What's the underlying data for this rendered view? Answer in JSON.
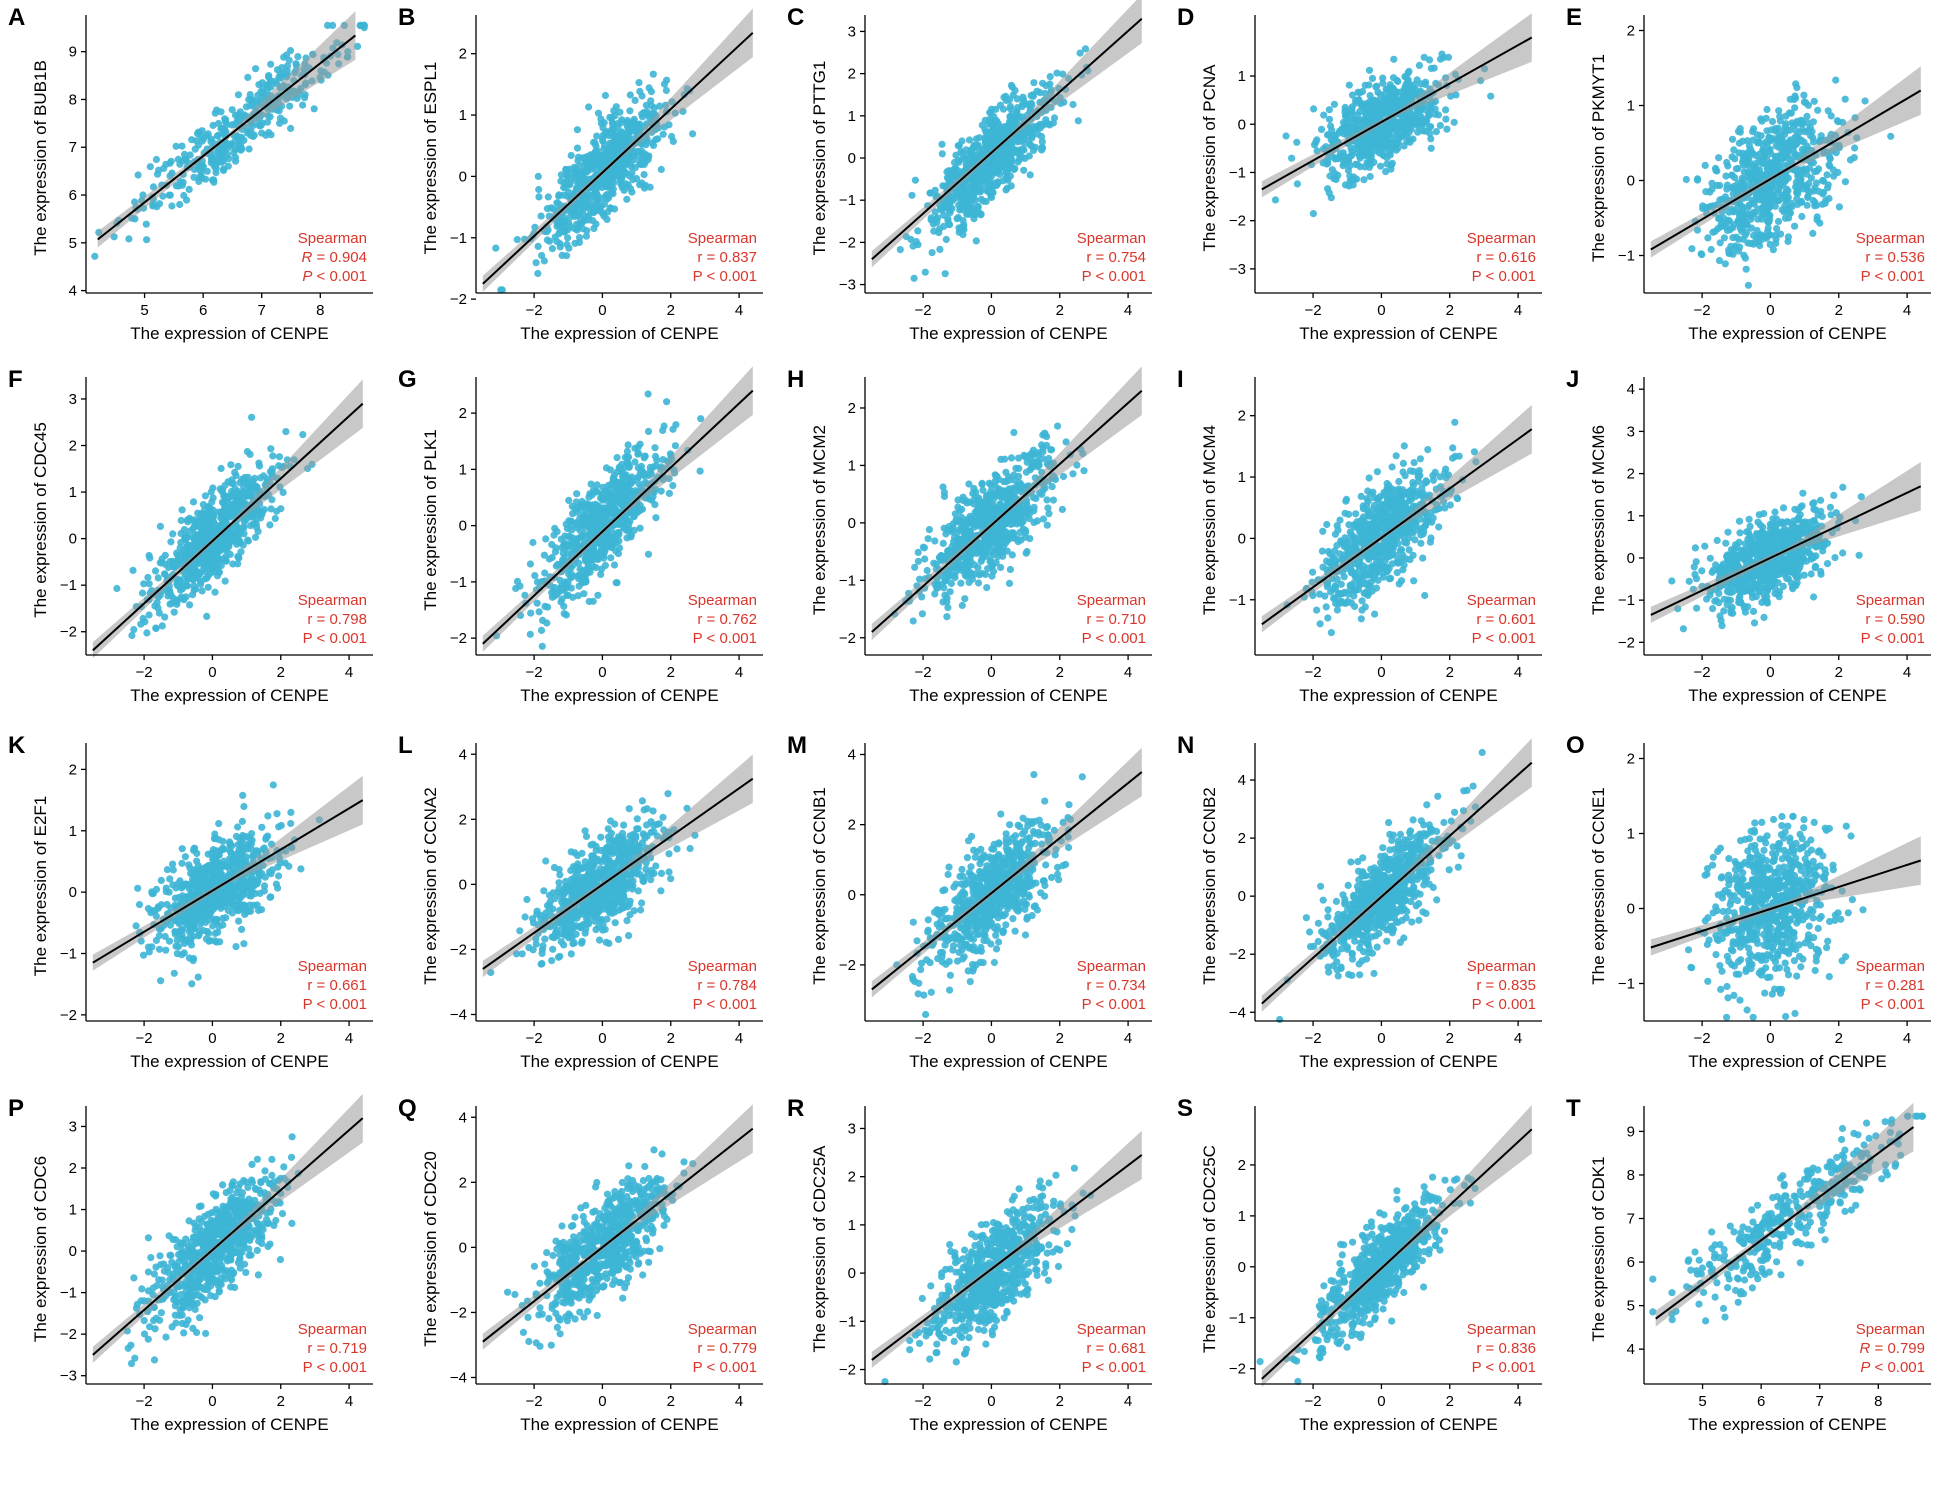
{
  "colors": {
    "points": "#3db5d5",
    "line": "#000000",
    "band": "#9a9a9a",
    "stat_text": "#d9362b"
  },
  "chart_data": [
    {
      "panel": "A",
      "type": "scatter",
      "title": "",
      "xlabel": "The expression of CENPE",
      "ylabel": "The expression of BUB1B",
      "xlim": [
        4.0,
        8.9
      ],
      "ylim": [
        3.95,
        9.6
      ],
      "xticks": [
        5,
        6,
        7,
        8
      ],
      "yticks": [
        4,
        5,
        6,
        7,
        8,
        9
      ],
      "x_center": 6.6,
      "x_sd": 0.9,
      "y_noise": 0.35,
      "slope": 0.97,
      "intercept": 1.0,
      "fit_line": [
        [
          4.2,
          5.07
        ],
        [
          8.6,
          9.34
        ]
      ],
      "method": "Spearman",
      "coef_symbol": "R",
      "coef_italic": true,
      "coef_value": "0.904",
      "p_value": "< 0.001",
      "n_points": 380
    },
    {
      "panel": "B",
      "type": "scatter",
      "title": "",
      "xlabel": "The expression of CENPE",
      "ylabel": "The expression of ESPL1",
      "xlim": [
        -3.7,
        4.7
      ],
      "ylim": [
        -1.9,
        2.5
      ],
      "xticks": [
        -2,
        0,
        2,
        4
      ],
      "yticks": [
        -2,
        -1,
        0,
        1,
        2
      ],
      "x_center": 0.0,
      "x_sd": 0.9,
      "y_noise": 0.35,
      "slope": 0.52,
      "intercept": 0.05,
      "fit_line": [
        [
          -3.5,
          -1.75
        ],
        [
          4.4,
          2.34
        ]
      ],
      "method": "Spearman",
      "coef_symbol": "r",
      "coef_italic": false,
      "coef_value": "0.837",
      "p_value": "< 0.001",
      "n_points": 700
    },
    {
      "panel": "C",
      "type": "scatter",
      "title": "",
      "xlabel": "The expression of CENPE",
      "ylabel": "The expression of PTTG1",
      "xlim": [
        -3.7,
        4.7
      ],
      "ylim": [
        -3.2,
        3.2
      ],
      "xticks": [
        -2,
        0,
        2,
        4
      ],
      "yticks": [
        -3,
        -2,
        -1,
        0,
        1,
        2,
        3
      ],
      "x_center": 0.0,
      "x_sd": 0.9,
      "y_noise": 0.5,
      "slope": 0.74,
      "intercept": 0.0,
      "fit_line": [
        [
          -3.5,
          -2.4
        ],
        [
          4.4,
          3.3
        ]
      ],
      "method": "Spearman",
      "coef_symbol": "r",
      "coef_italic": false,
      "coef_value": "0.754",
      "p_value": "< 0.001",
      "n_points": 700
    },
    {
      "panel": "D",
      "type": "scatter",
      "title": "",
      "xlabel": "The expression of CENPE",
      "ylabel": "The expression of PCNA",
      "xlim": [
        -3.7,
        4.7
      ],
      "ylim": [
        -3.5,
        2.1
      ],
      "xticks": [
        -2,
        0,
        2,
        4
      ],
      "yticks": [
        -3,
        -2,
        -1,
        0,
        1
      ],
      "x_center": 0.0,
      "x_sd": 0.9,
      "y_noise": 0.42,
      "slope": 0.33,
      "intercept": 0.0,
      "fit_line": [
        [
          -3.5,
          -1.35
        ],
        [
          4.4,
          1.8
        ]
      ],
      "method": "Spearman",
      "coef_symbol": "r",
      "coef_italic": false,
      "coef_value": "0.616",
      "p_value": "< 0.001",
      "n_points": 700
    },
    {
      "panel": "E",
      "type": "scatter",
      "title": "",
      "xlabel": "The expression of CENPE",
      "ylabel": "The expression of PKMYT1",
      "xlim": [
        -3.7,
        4.7
      ],
      "ylim": [
        -1.5,
        2.1
      ],
      "xticks": [
        -2,
        0,
        2,
        4
      ],
      "yticks": [
        -1,
        0,
        1,
        2
      ],
      "x_center": 0.0,
      "x_sd": 0.9,
      "y_noise": 0.42,
      "slope": 0.23,
      "intercept": 0.0,
      "fit_line": [
        [
          -3.5,
          -0.92
        ],
        [
          4.4,
          1.2
        ]
      ],
      "method": "Spearman",
      "coef_symbol": "r",
      "coef_italic": false,
      "coef_value": "0.536",
      "p_value": "< 0.001",
      "n_points": 700
    },
    {
      "panel": "F",
      "type": "scatter",
      "title": "",
      "xlabel": "The expression of CENPE",
      "ylabel": "The expression of CDC45",
      "xlim": [
        -3.7,
        4.7
      ],
      "ylim": [
        -2.5,
        3.3
      ],
      "xticks": [
        -2,
        0,
        2,
        4
      ],
      "yticks": [
        -2,
        -1,
        0,
        1,
        2,
        3
      ],
      "x_center": 0.0,
      "x_sd": 0.9,
      "y_noise": 0.45,
      "slope": 0.68,
      "intercept": 0.02,
      "fit_line": [
        [
          -3.5,
          -2.4
        ],
        [
          4.4,
          2.9
        ]
      ],
      "method": "Spearman",
      "coef_symbol": "r",
      "coef_italic": false,
      "coef_value": "0.798",
      "p_value": "< 0.001",
      "n_points": 700
    },
    {
      "panel": "G",
      "type": "scatter",
      "title": "",
      "xlabel": "The expression of CENPE",
      "ylabel": "The expression of PLK1",
      "xlim": [
        -3.7,
        4.7
      ],
      "ylim": [
        -2.3,
        2.5
      ],
      "xticks": [
        -2,
        0,
        2,
        4
      ],
      "yticks": [
        -2,
        -1,
        0,
        1,
        2
      ],
      "x_center": 0.0,
      "x_sd": 0.9,
      "y_noise": 0.42,
      "slope": 0.58,
      "intercept": 0.0,
      "fit_line": [
        [
          -3.5,
          -2.1
        ],
        [
          4.4,
          2.4
        ]
      ],
      "method": "Spearman",
      "coef_symbol": "r",
      "coef_italic": false,
      "coef_value": "0.762",
      "p_value": "< 0.001",
      "n_points": 700
    },
    {
      "panel": "H",
      "type": "scatter",
      "title": "",
      "xlabel": "The expression of CENPE",
      "ylabel": "The expression of MCM2",
      "xlim": [
        -3.7,
        4.7
      ],
      "ylim": [
        -2.3,
        2.4
      ],
      "xticks": [
        -2,
        0,
        2,
        4
      ],
      "yticks": [
        -2,
        -1,
        0,
        1,
        2
      ],
      "x_center": 0.0,
      "x_sd": 0.9,
      "y_noise": 0.42,
      "slope": 0.5,
      "intercept": 0.0,
      "fit_line": [
        [
          -3.5,
          -1.9
        ],
        [
          4.4,
          2.3
        ]
      ],
      "method": "Spearman",
      "coef_symbol": "r",
      "coef_italic": false,
      "coef_value": "0.710",
      "p_value": "< 0.001",
      "n_points": 700
    },
    {
      "panel": "I",
      "type": "scatter",
      "title": "",
      "xlabel": "The expression of CENPE",
      "ylabel": "The expression of MCM4",
      "xlim": [
        -3.7,
        4.7
      ],
      "ylim": [
        -1.9,
        2.5
      ],
      "xticks": [
        -2,
        0,
        2,
        4
      ],
      "yticks": [
        -1,
        0,
        1,
        2
      ],
      "x_center": 0.0,
      "x_sd": 0.9,
      "y_noise": 0.42,
      "slope": 0.41,
      "intercept": 0.0,
      "fit_line": [
        [
          -3.5,
          -1.4
        ],
        [
          4.4,
          1.78
        ]
      ],
      "method": "Spearman",
      "coef_symbol": "r",
      "coef_italic": false,
      "coef_value": "0.601",
      "p_value": "< 0.001",
      "n_points": 700
    },
    {
      "panel": "J",
      "type": "scatter",
      "title": "",
      "xlabel": "The expression of CENPE",
      "ylabel": "The expression of MCM6",
      "xlim": [
        -3.7,
        4.7
      ],
      "ylim": [
        -2.3,
        4.1
      ],
      "xticks": [
        -2,
        0,
        2,
        4
      ],
      "yticks": [
        -2,
        -1,
        0,
        1,
        2,
        3,
        4
      ],
      "x_center": 0.0,
      "x_sd": 0.9,
      "y_noise": 0.45,
      "slope": 0.39,
      "intercept": 0.0,
      "fit_line": [
        [
          -3.5,
          -1.35
        ],
        [
          4.4,
          1.7
        ]
      ],
      "method": "Spearman",
      "coef_symbol": "r",
      "coef_italic": false,
      "coef_value": "0.590",
      "p_value": "< 0.001",
      "n_points": 700
    },
    {
      "panel": "K",
      "type": "scatter",
      "title": "",
      "xlabel": "The expression of CENPE",
      "ylabel": "The expression of E2F1",
      "xlim": [
        -3.7,
        4.7
      ],
      "ylim": [
        -2.1,
        2.3
      ],
      "xticks": [
        -2,
        0,
        2,
        4
      ],
      "yticks": [
        -2,
        -1,
        0,
        1,
        2
      ],
      "x_center": 0.0,
      "x_sd": 0.9,
      "y_noise": 0.38,
      "slope": 0.33,
      "intercept": 0.0,
      "fit_line": [
        [
          -3.5,
          -1.15
        ],
        [
          4.4,
          1.5
        ]
      ],
      "method": "Spearman",
      "coef_symbol": "r",
      "coef_italic": false,
      "coef_value": "0.661",
      "p_value": "< 0.001",
      "n_points": 700
    },
    {
      "panel": "L",
      "type": "scatter",
      "title": "",
      "xlabel": "The expression of CENPE",
      "ylabel": "The expression of CCNA2",
      "xlim": [
        -3.7,
        4.7
      ],
      "ylim": [
        -4.2,
        4.1
      ],
      "xticks": [
        -2,
        0,
        2,
        4
      ],
      "yticks": [
        -4,
        -2,
        0,
        2,
        4
      ],
      "x_center": 0.0,
      "x_sd": 0.9,
      "y_noise": 0.7,
      "slope": 0.74,
      "intercept": 0.0,
      "fit_line": [
        [
          -3.5,
          -2.6
        ],
        [
          4.4,
          3.25
        ]
      ],
      "method": "Spearman",
      "coef_symbol": "r",
      "coef_italic": false,
      "coef_value": "0.784",
      "p_value": "< 0.001",
      "n_points": 700
    },
    {
      "panel": "M",
      "type": "scatter",
      "title": "",
      "xlabel": "The expression of CENPE",
      "ylabel": "The expression of CCNB1",
      "xlim": [
        -3.7,
        4.7
      ],
      "ylim": [
        -3.6,
        4.1
      ],
      "xticks": [
        -2,
        0,
        2,
        4
      ],
      "yticks": [
        -2,
        0,
        2,
        4
      ],
      "x_center": 0.0,
      "x_sd": 0.9,
      "y_noise": 0.7,
      "slope": 0.82,
      "intercept": 0.0,
      "fit_line": [
        [
          -3.5,
          -2.7
        ],
        [
          4.4,
          3.5
        ]
      ],
      "method": "Spearman",
      "coef_symbol": "r",
      "coef_italic": false,
      "coef_value": "0.734",
      "p_value": "< 0.001",
      "n_points": 700
    },
    {
      "panel": "N",
      "type": "scatter",
      "title": "",
      "xlabel": "The expression of CENPE",
      "ylabel": "The expression of CCNB2",
      "xlim": [
        -3.7,
        4.7
      ],
      "ylim": [
        -4.3,
        5.0
      ],
      "xticks": [
        -2,
        0,
        2,
        4
      ],
      "yticks": [
        -4,
        -2,
        0,
        2,
        4
      ],
      "x_center": 0.0,
      "x_sd": 0.9,
      "y_noise": 0.75,
      "slope": 1.05,
      "intercept": 0.0,
      "fit_line": [
        [
          -3.5,
          -3.7
        ],
        [
          4.4,
          4.6
        ]
      ],
      "method": "Spearman",
      "coef_symbol": "r",
      "coef_italic": false,
      "coef_value": "0.835",
      "p_value": "< 0.001",
      "n_points": 700
    },
    {
      "panel": "O",
      "type": "scatter",
      "title": "",
      "xlabel": "The expression of CENPE",
      "ylabel": "The expression of CCNE1",
      "xlim": [
        -3.7,
        4.7
      ],
      "ylim": [
        -1.5,
        2.1
      ],
      "xticks": [
        -2,
        0,
        2,
        4
      ],
      "yticks": [
        -1,
        0,
        1,
        2
      ],
      "x_center": 0.0,
      "x_sd": 0.9,
      "y_noise": 0.5,
      "slope": 0.14,
      "intercept": 0.0,
      "fit_line": [
        [
          -3.5,
          -0.52
        ],
        [
          4.4,
          0.64
        ]
      ],
      "method": "Spearman",
      "coef_symbol": "r",
      "coef_italic": false,
      "coef_value": "0.281",
      "p_value": "< 0.001",
      "n_points": 700
    },
    {
      "panel": "P",
      "type": "scatter",
      "title": "",
      "xlabel": "The expression of CENPE",
      "ylabel": "The expression of CDC6",
      "xlim": [
        -3.7,
        4.7
      ],
      "ylim": [
        -3.2,
        3.3
      ],
      "xticks": [
        -2,
        0,
        2,
        4
      ],
      "yticks": [
        -3,
        -2,
        -1,
        0,
        1,
        2,
        3
      ],
      "x_center": 0.0,
      "x_sd": 0.9,
      "y_noise": 0.55,
      "slope": 0.72,
      "intercept": 0.0,
      "fit_line": [
        [
          -3.5,
          -2.5
        ],
        [
          4.4,
          3.2
        ]
      ],
      "method": "Spearman",
      "coef_symbol": "r",
      "coef_italic": false,
      "coef_value": "0.719",
      "p_value": "< 0.001",
      "n_points": 700
    },
    {
      "panel": "Q",
      "type": "scatter",
      "title": "",
      "xlabel": "The expression of CENPE",
      "ylabel": "The expression of CDC20",
      "xlim": [
        -3.7,
        4.7
      ],
      "ylim": [
        -4.2,
        4.1
      ],
      "xticks": [
        -2,
        0,
        2,
        4
      ],
      "yticks": [
        -4,
        -2,
        0,
        2,
        4
      ],
      "x_center": 0.0,
      "x_sd": 0.9,
      "y_noise": 0.7,
      "slope": 0.83,
      "intercept": 0.0,
      "fit_line": [
        [
          -3.5,
          -2.9
        ],
        [
          4.4,
          3.65
        ]
      ],
      "method": "Spearman",
      "coef_symbol": "r",
      "coef_italic": false,
      "coef_value": "0.779",
      "p_value": "< 0.001",
      "n_points": 700
    },
    {
      "panel": "R",
      "type": "scatter",
      "title": "",
      "xlabel": "The expression of CENPE",
      "ylabel": "The expression of CDC25A",
      "xlim": [
        -3.7,
        4.7
      ],
      "ylim": [
        -2.3,
        3.3
      ],
      "xticks": [
        -2,
        0,
        2,
        4
      ],
      "yticks": [
        -2,
        -1,
        0,
        1,
        2,
        3
      ],
      "x_center": 0.0,
      "x_sd": 0.9,
      "y_noise": 0.5,
      "slope": 0.55,
      "intercept": 0.0,
      "fit_line": [
        [
          -3.5,
          -1.8
        ],
        [
          4.4,
          2.45
        ]
      ],
      "method": "Spearman",
      "coef_symbol": "r",
      "coef_italic": false,
      "coef_value": "0.681",
      "p_value": "< 0.001",
      "n_points": 700
    },
    {
      "panel": "S",
      "type": "scatter",
      "title": "",
      "xlabel": "The expression of CENPE",
      "ylabel": "The expression of CDC25C",
      "xlim": [
        -3.7,
        4.7
      ],
      "ylim": [
        -2.3,
        3.0
      ],
      "xticks": [
        -2,
        0,
        2,
        4
      ],
      "yticks": [
        -2,
        -1,
        0,
        1,
        2
      ],
      "x_center": 0.0,
      "x_sd": 0.9,
      "y_noise": 0.4,
      "slope": 0.62,
      "intercept": 0.0,
      "fit_line": [
        [
          -3.5,
          -2.2
        ],
        [
          4.4,
          2.7
        ]
      ],
      "method": "Spearman",
      "coef_symbol": "r",
      "coef_italic": false,
      "coef_value": "0.836",
      "p_value": "< 0.001",
      "n_points": 700
    },
    {
      "panel": "T",
      "type": "scatter",
      "title": "",
      "xlabel": "The expression of CENPE",
      "ylabel": "The expression of CDK1",
      "xlim": [
        4.0,
        8.9
      ],
      "ylim": [
        3.2,
        9.4
      ],
      "xticks": [
        5,
        6,
        7,
        8
      ],
      "yticks": [
        4,
        5,
        6,
        7,
        8,
        9
      ],
      "x_center": 6.6,
      "x_sd": 0.9,
      "y_noise": 0.45,
      "slope": 1.02,
      "intercept": 0.45,
      "fit_line": [
        [
          4.2,
          4.7
        ],
        [
          8.6,
          9.1
        ]
      ],
      "method": "Spearman",
      "coef_symbol": "R",
      "coef_italic": true,
      "coef_value": "0.799",
      "p_value": "< 0.001",
      "n_points": 380
    }
  ]
}
